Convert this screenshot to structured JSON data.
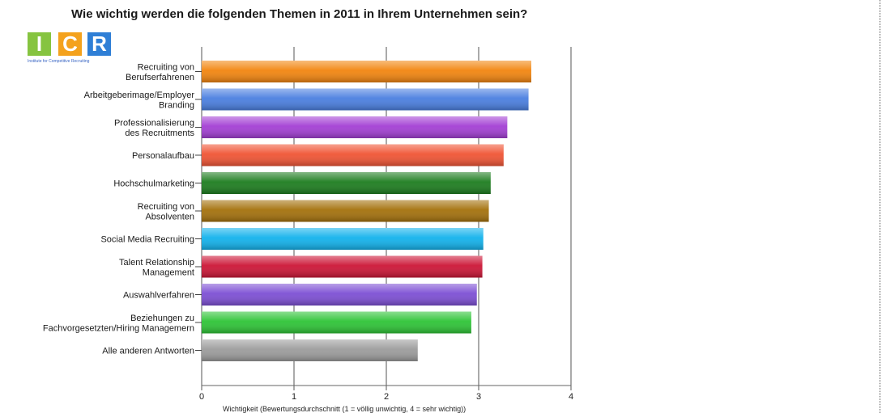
{
  "logo": {
    "letters": [
      "I",
      "C",
      "R"
    ],
    "colors": [
      "#86c440",
      "#f4a21d",
      "#2f7fd6"
    ],
    "subtitle": "Institute for Competitive Recruiting"
  },
  "colors": [
    "#f2850f",
    "#4a7fe0",
    "#a33fd4",
    "#f05434",
    "#1d7d1f",
    "#a4710c",
    "#12b2ec",
    "#cc1636",
    "#7d4fd4",
    "#2ec436",
    "#9c9c9c"
  ],
  "chart_data": {
    "type": "bar",
    "orientation": "horizontal",
    "title": "Wie wichtig werden die folgenden Themen in 2011 in Ihrem Unternehmen sein?",
    "xlabel": "Wichtigkeit (Bewertungsdurchschnitt (1 = völlig unwichtig, 4 = sehr wichtig))",
    "xlim": [
      0,
      4
    ],
    "xticks": [
      "0",
      "1",
      "2",
      "3",
      "4"
    ],
    "grid": true,
    "categories": [
      [
        "Recruiting von",
        "Berufserfahrenen"
      ],
      [
        "Arbeitgeberimage/Employer",
        "Branding"
      ],
      [
        "Professionalisierung",
        "des Recruitments"
      ],
      [
        "Personalaufbau"
      ],
      [
        "Hochschulmarketing"
      ],
      [
        "Recruiting von",
        "Absolventen"
      ],
      [
        "Social Media Recruiting"
      ],
      [
        "Talent Relationship",
        "Management"
      ],
      [
        "Auswahlverfahren"
      ],
      [
        "Beziehungen zu",
        "Fachvorgesetzten/Hiring Managemern"
      ],
      [
        "Alle anderen Antworten"
      ]
    ],
    "values": [
      3.57,
      3.54,
      3.31,
      3.27,
      3.13,
      3.11,
      3.05,
      3.04,
      2.98,
      2.92,
      2.34
    ]
  }
}
